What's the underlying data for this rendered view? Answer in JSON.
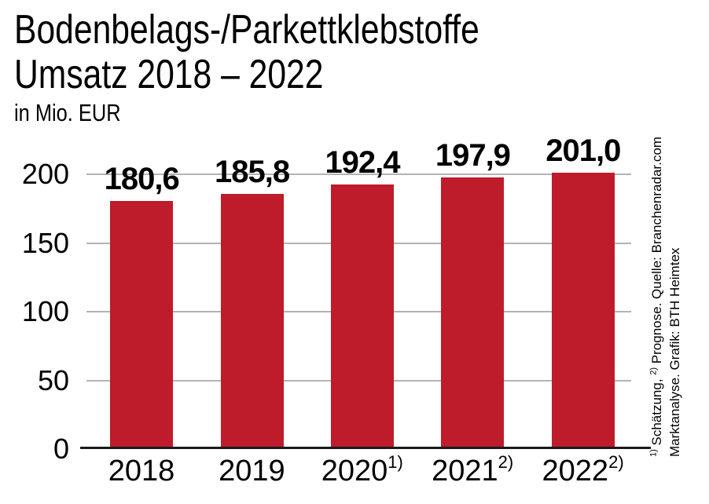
{
  "header": {
    "title_line1": "Bodenbelags-/Parkettklebstoffe",
    "title_line2": "Umsatz 2018 – 2022",
    "units": "in Mio. EUR"
  },
  "chart_data": {
    "type": "bar",
    "title": "Bodenbelags-/Parkettklebstoffe Umsatz 2018 – 2022",
    "subtitle": "in Mio. EUR",
    "categories": [
      "2018",
      "2019",
      "2020",
      "2021",
      "2022"
    ],
    "category_superscripts": [
      "",
      "",
      "1)",
      "2)",
      "2)"
    ],
    "values": [
      180.6,
      185.8,
      192.4,
      197.9,
      201.0
    ],
    "value_labels": [
      "180,6",
      "185,8",
      "192,4",
      "197,9",
      "201,0"
    ],
    "xlabel": "",
    "ylabel": "in Mio. EUR",
    "ylim": [
      0,
      200
    ],
    "yticks": [
      0,
      50,
      100,
      150,
      200
    ],
    "grid": true,
    "legend": "none",
    "bar_color": "#BE1B2B",
    "gridline_color": "#B3B3B3",
    "axis_color": "#1A1A1A"
  },
  "footnote": {
    "line1_segments": [
      {
        "sup": "1)"
      },
      {
        "text": " Schätzung, "
      },
      {
        "sup": "2)"
      },
      {
        "text": " Prognose. Quelle: Branchenradar.com"
      }
    ],
    "line2": "Marktanalyse. Grafik: BTH Heimtex"
  }
}
